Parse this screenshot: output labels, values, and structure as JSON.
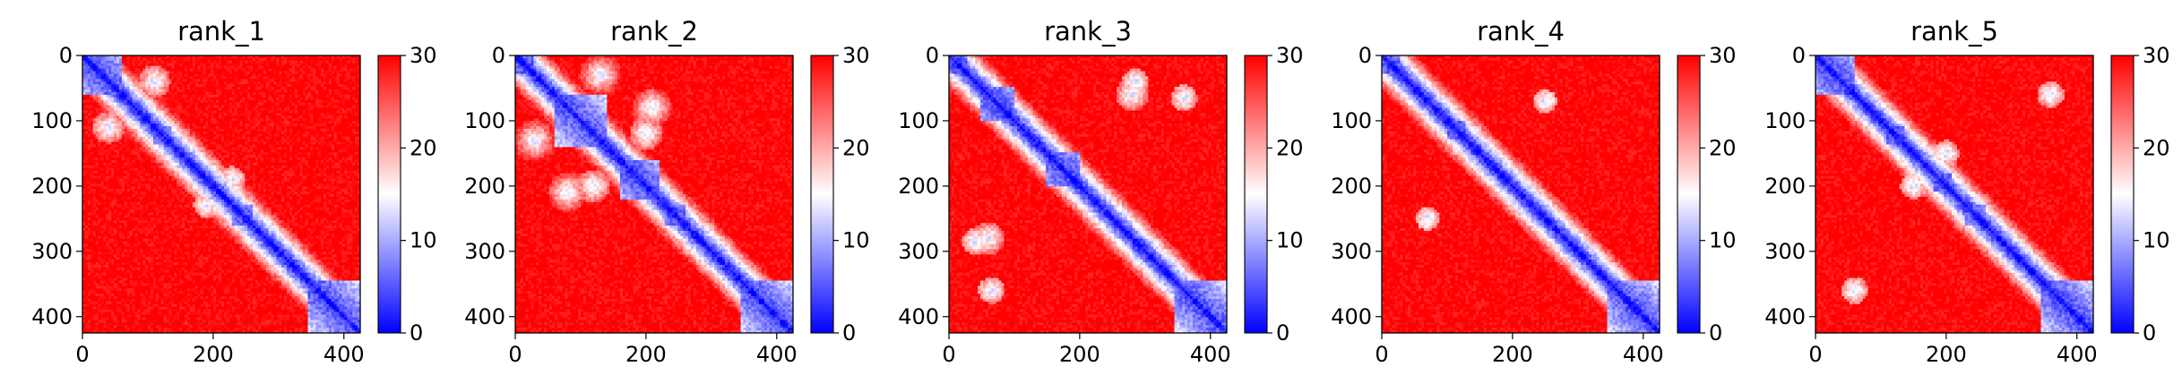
{
  "chart_data": [
    {
      "type": "heatmap",
      "title": "rank_1",
      "xlim": [
        0,
        425
      ],
      "ylim": [
        425,
        0
      ],
      "x_ticks": [
        0,
        200,
        400
      ],
      "y_ticks": [
        0,
        100,
        200,
        300,
        400
      ],
      "colorbar": {
        "min": 0,
        "max": 30,
        "ticks": [
          0,
          10,
          20,
          30
        ],
        "colors": [
          "#0000ff",
          "#ffffff",
          "#ff0000"
        ]
      },
      "diagonal_blocks": [
        [
          0,
          60
        ],
        [
          110,
          135
        ],
        [
          230,
          260
        ],
        [
          285,
          300
        ],
        [
          345,
          425
        ]
      ],
      "off_diagonal_patches": [
        [
          40,
          110,
          25
        ],
        [
          190,
          230,
          20
        ]
      ]
    },
    {
      "type": "heatmap",
      "title": "rank_2",
      "xlim": [
        0,
        425
      ],
      "ylim": [
        425,
        0
      ],
      "x_ticks": [
        0,
        200,
        400
      ],
      "y_ticks": [
        0,
        100,
        200,
        300,
        400
      ],
      "colorbar": {
        "min": 0,
        "max": 30,
        "ticks": [
          0,
          10,
          20,
          30
        ],
        "colors": [
          "#0000ff",
          "#ffffff",
          "#ff0000"
        ]
      },
      "diagonal_blocks": [
        [
          0,
          30
        ],
        [
          60,
          140
        ],
        [
          160,
          220
        ],
        [
          230,
          260
        ],
        [
          345,
          425
        ]
      ],
      "off_diagonal_patches": [
        [
          30,
          130,
          35
        ],
        [
          210,
          80,
          30
        ],
        [
          120,
          200,
          25
        ]
      ]
    },
    {
      "type": "heatmap",
      "title": "rank_3",
      "xlim": [
        0,
        425
      ],
      "ylim": [
        425,
        0
      ],
      "x_ticks": [
        0,
        200,
        400
      ],
      "y_ticks": [
        0,
        100,
        200,
        300,
        400
      ],
      "colorbar": {
        "min": 0,
        "max": 30,
        "ticks": [
          0,
          10,
          20,
          30
        ],
        "colors": [
          "#0000ff",
          "#ffffff",
          "#ff0000"
        ]
      },
      "diagonal_blocks": [
        [
          0,
          30
        ],
        [
          50,
          100
        ],
        [
          150,
          200
        ],
        [
          240,
          260
        ],
        [
          280,
          300
        ],
        [
          345,
          425
        ]
      ],
      "off_diagonal_patches": [
        [
          285,
          40,
          20
        ],
        [
          60,
          280,
          25
        ],
        [
          65,
          360,
          20
        ]
      ]
    },
    {
      "type": "heatmap",
      "title": "rank_4",
      "xlim": [
        0,
        425
      ],
      "ylim": [
        425,
        0
      ],
      "x_ticks": [
        0,
        200,
        400
      ],
      "y_ticks": [
        0,
        100,
        200,
        300,
        400
      ],
      "colorbar": {
        "min": 0,
        "max": 30,
        "ticks": [
          0,
          10,
          20,
          30
        ],
        "colors": [
          "#0000ff",
          "#ffffff",
          "#ff0000"
        ]
      },
      "diagonal_blocks": [
        [
          0,
          30
        ],
        [
          100,
          130
        ],
        [
          240,
          260
        ],
        [
          280,
          300
        ],
        [
          345,
          425
        ]
      ],
      "off_diagonal_patches": [
        [
          250,
          70,
          18
        ],
        [
          70,
          250,
          18
        ]
      ]
    },
    {
      "type": "heatmap",
      "title": "rank_5",
      "xlim": [
        0,
        425
      ],
      "ylim": [
        425,
        0
      ],
      "x_ticks": [
        0,
        200,
        400
      ],
      "y_ticks": [
        0,
        100,
        200,
        300,
        400
      ],
      "colorbar": {
        "min": 0,
        "max": 30,
        "ticks": [
          0,
          10,
          20,
          30
        ],
        "colors": [
          "#0000ff",
          "#ffffff",
          "#ff0000"
        ]
      },
      "diagonal_blocks": [
        [
          0,
          60
        ],
        [
          110,
          135
        ],
        [
          180,
          210
        ],
        [
          230,
          260
        ],
        [
          280,
          300
        ],
        [
          345,
          425
        ]
      ],
      "off_diagonal_patches": [
        [
          150,
          200,
          20
        ],
        [
          60,
          360,
          20
        ]
      ]
    }
  ]
}
